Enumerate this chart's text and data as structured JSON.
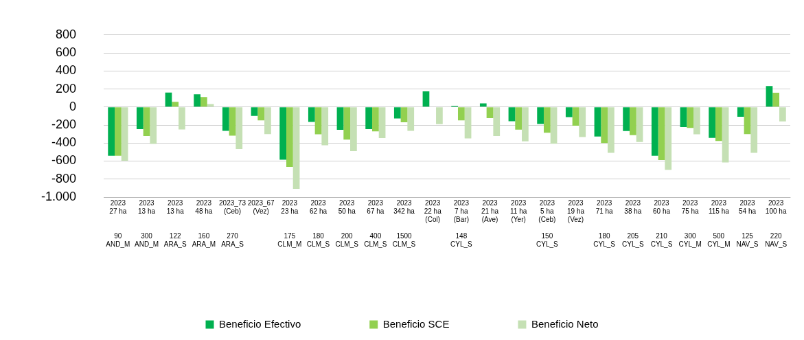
{
  "chart_data": {
    "type": "bar",
    "categories": [
      "2023\n27 ha\n\n\n90\nAND_M",
      "2023\n13 ha\n\n\n300\nAND_M",
      "2023\n13 ha\n\n\n122\nARA_S",
      "2023\n48 ha\n\n\n160\nARA_M",
      "2023_73\n(Ceb)\n\n\n270\nARA_S",
      "2023_67\n(Vez)\n\n\n\n",
      "2023\n23 ha\n\n\n175\nCLM_M",
      "2023\n62 ha\n\n\n180\nCLM_S",
      "2023\n50 ha\n\n\n200\nCLM_S",
      "2023\n67 ha\n\n\n400\nCLM_S",
      "2023\n342 ha\n\n\n1500\nCLM_S",
      "2023\n22 ha\n(Col)\n\n\n",
      "2023\n7 ha\n(Bar)\n\n148\nCYL_S",
      "2023\n21 ha\n(Ave)\n\n\n",
      "2023\n11 ha\n(Yer)\n\n\n",
      "2023\n5 ha\n(Ceb)\n\n150\nCYL_S",
      "2023\n19 ha\n(Vez)\n\n\n",
      "2023\n71 ha\n\n\n180\nCYL_S",
      "2023\n38 ha\n\n\n205\nCYL_S",
      "2023\n60 ha\n\n\n210\nCYL_S",
      "2023\n75 ha\n\n\n300\nCYL_M",
      "2023\n115 ha\n\n\n500\nCYL_M",
      "2023\n54 ha\n\n\n125\nNAV_S",
      "2023\n100 ha\n\n\n220\nNAV_S"
    ],
    "series": [
      {
        "name": "Beneficio Efectivo",
        "color": "#00b050",
        "values": [
          -540,
          -246,
          160,
          142,
          -265,
          -98,
          -585,
          -165,
          -254,
          -246,
          -127,
          173,
          14,
          41,
          -157,
          -188,
          -113,
          -328,
          -266,
          -540,
          -223,
          -342,
          -109,
          233
        ]
      },
      {
        "name": "Beneficio SCE",
        "color": "#92d050",
        "values": [
          -540,
          -321,
          58,
          110,
          -317,
          -148,
          -665,
          -302,
          -362,
          -271,
          -169,
          0,
          -148,
          -124,
          -252,
          -285,
          -208,
          -400,
          -313,
          -588,
          -233,
          -377,
          -301,
          159
        ]
      },
      {
        "name": "Beneficio Neto",
        "color": "#c5e0b4",
        "values": [
          -596,
          -410,
          -250,
          33,
          -467,
          -300,
          -908,
          -425,
          -490,
          -344,
          -265,
          -190,
          -348,
          -322,
          -381,
          -408,
          -334,
          -509,
          -388,
          -697,
          -303,
          -616,
          -509,
          -159
        ]
      }
    ],
    "ylim": [
      -1000,
      800
    ],
    "yticks": [
      {
        "value": -1000,
        "label": "-1.000"
      },
      -800,
      -600,
      -400,
      -200,
      0,
      200,
      400,
      600,
      800
    ],
    "grid": "y",
    "legend": "bottom"
  }
}
